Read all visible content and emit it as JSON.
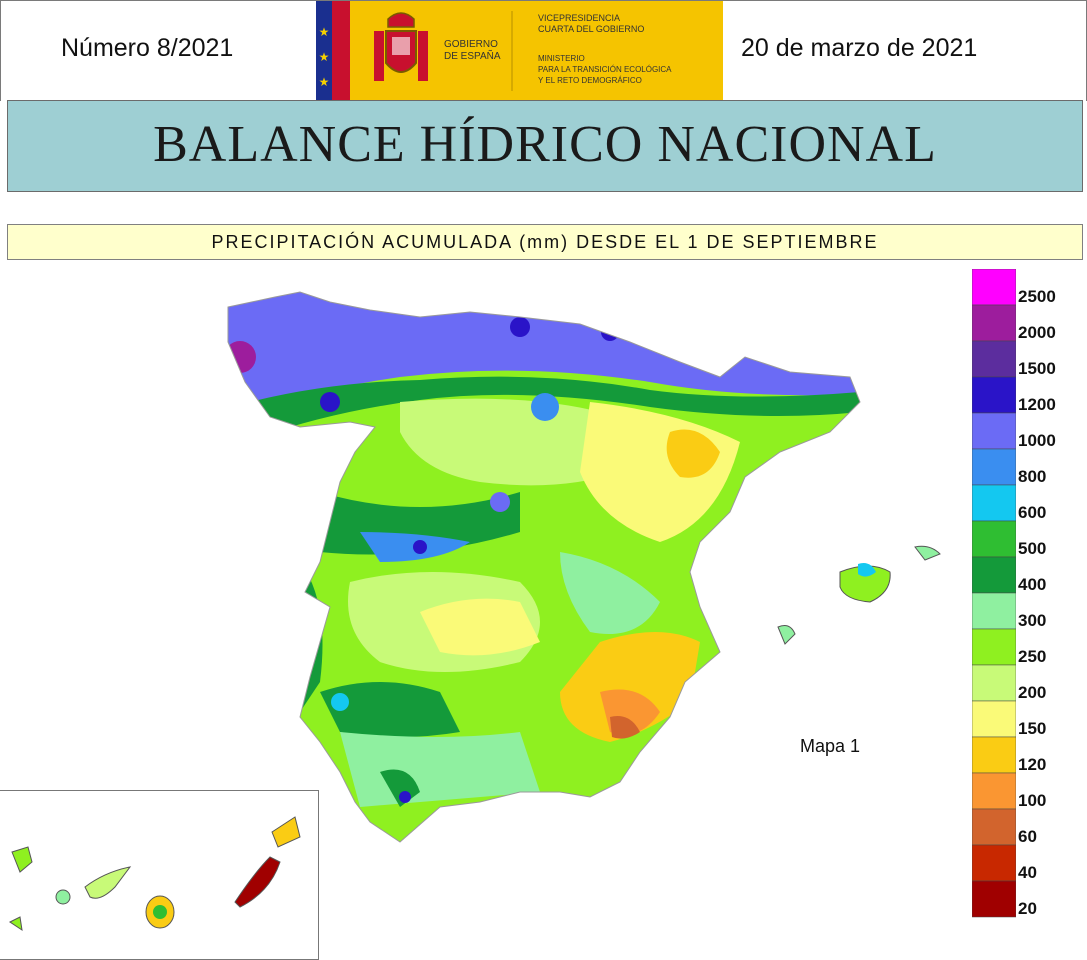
{
  "header": {
    "issue": "Número 8/2021",
    "date": "20 de marzo de 2021",
    "logo": {
      "government": "GOBIERNO DE ESPAÑA",
      "vice_presidency": "VICEPRESIDENCIA CUARTA DEL GOBIERNO",
      "ministry_1": "MINISTERIO",
      "ministry_2": "PARA LA TRANSICIÓN ECOLÓGICA",
      "ministry_3": "Y EL RETO DEMOGRÁFICO"
    }
  },
  "title": "BALANCE HÍDRICO NACIONAL",
  "subtitle": "PRECIPITACIÓN ACUMULADA (mm) DESDE EL 1 DE SEPTIEMBRE",
  "map_label": "Mapa 1",
  "legend": {
    "items": [
      {
        "label": "2500",
        "color": "#ff00ff"
      },
      {
        "label": "2000",
        "color": "#9d1d9d"
      },
      {
        "label": "1500",
        "color": "#5c2d9e"
      },
      {
        "label": "1200",
        "color": "#2a14c8"
      },
      {
        "label": "1000",
        "color": "#6b6bf5"
      },
      {
        "label": "800",
        "color": "#3a8ef0"
      },
      {
        "label": "600",
        "color": "#14c8f0"
      },
      {
        "label": "500",
        "color": "#2fbe32"
      },
      {
        "label": "400",
        "color": "#149a3a"
      },
      {
        "label": "300",
        "color": "#8ff0a0"
      },
      {
        "label": "250",
        "color": "#8ff020"
      },
      {
        "label": "200",
        "color": "#c8fa78"
      },
      {
        "label": "150",
        "color": "#fafa78"
      },
      {
        "label": "120",
        "color": "#facc14"
      },
      {
        "label": "100",
        "color": "#fa9632"
      },
      {
        "label": "60",
        "color": "#d2642d"
      },
      {
        "label": "40",
        "color": "#c82800"
      },
      {
        "label": "20",
        "color": "#a00000"
      }
    ]
  }
}
